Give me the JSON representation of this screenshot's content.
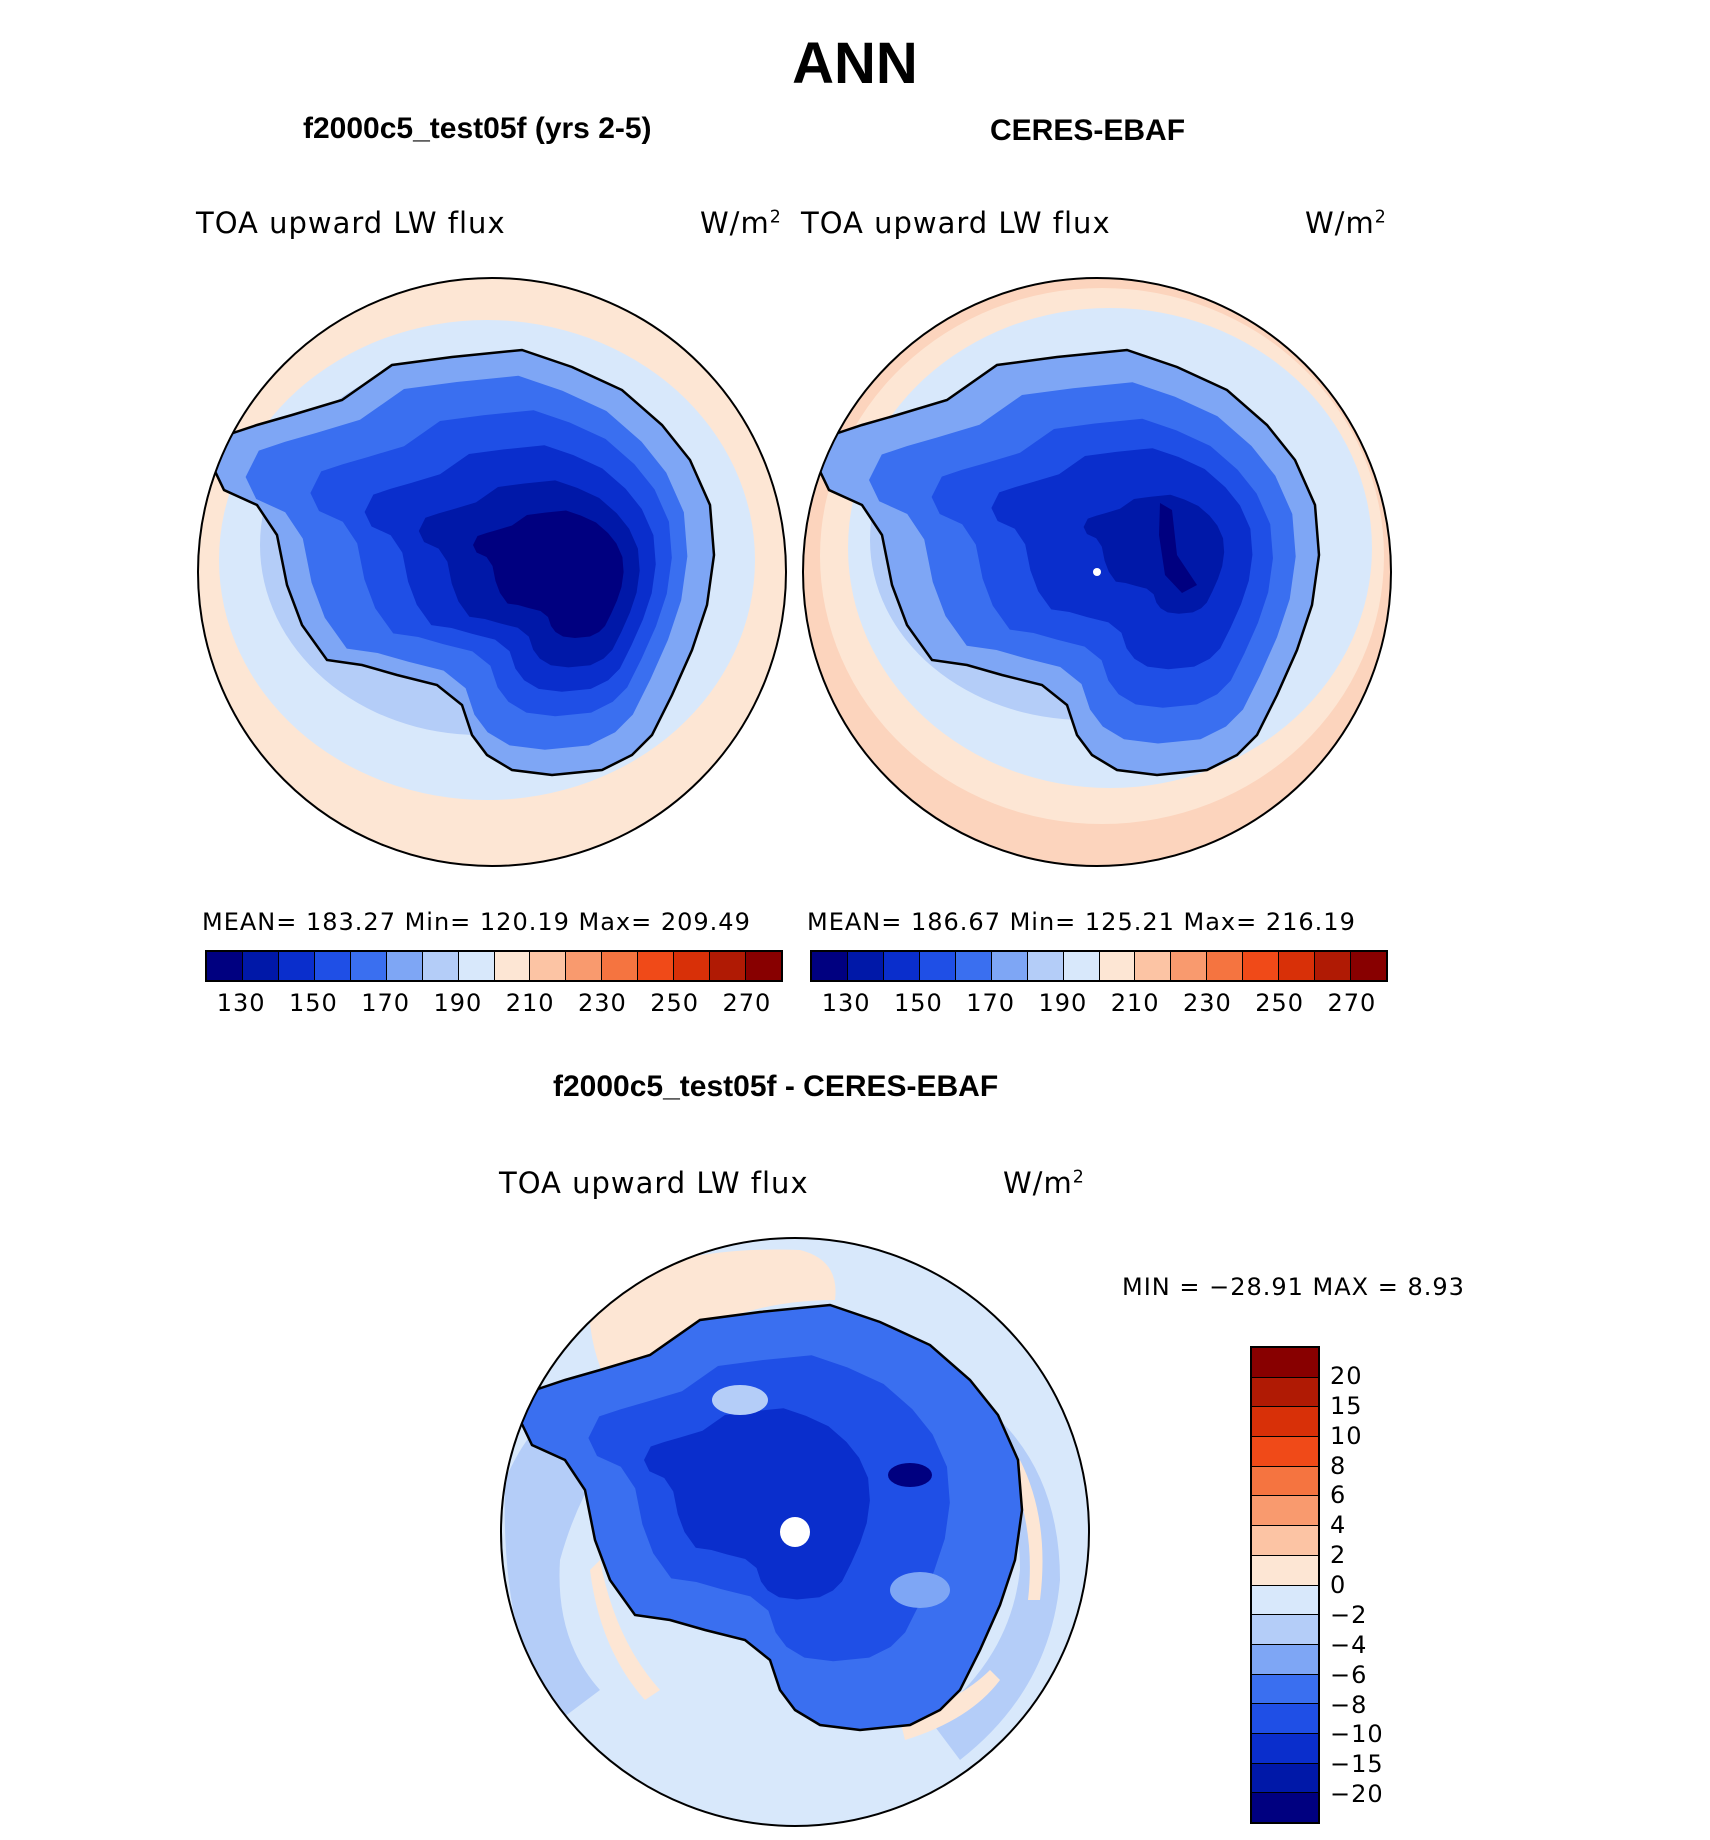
{
  "title": "ANN",
  "panels": {
    "model": {
      "title": "f2000c5_test05f (yrs 2-5)",
      "variable": "TOA upward LW flux",
      "units": "W/m",
      "units_sup": "2",
      "stats": "MEAN=  183.27   Min=  120.19   Max=  209.49"
    },
    "obs": {
      "title": "CERES-EBAF",
      "variable": "TOA upward LW flux",
      "units": "W/m",
      "units_sup": "2",
      "stats": "MEAN=  186.67   Min=  125.21   Max=  216.19"
    },
    "diff": {
      "title": "f2000c5_test05f - CERES-EBAF",
      "variable": "TOA upward LW flux",
      "units": "W/m",
      "units_sup": "2",
      "stats": "MIN  =  −28.91  MAX  =     8.93"
    }
  },
  "abs_colorbar": {
    "labels": [
      "130",
      "150",
      "170",
      "190",
      "210",
      "230",
      "250",
      "270"
    ],
    "colors": [
      "#000080",
      "#0018a8",
      "#0a2ecc",
      "#1f4fe6",
      "#3a6ff0",
      "#7ea6f5",
      "#b4cdf8",
      "#d8e8fb",
      "#fde6d4",
      "#fcc4a4",
      "#f99a6e",
      "#f57440",
      "#f04a18",
      "#d83008",
      "#b01a04",
      "#880000"
    ]
  },
  "diff_colorbar": {
    "labels": [
      "20",
      "15",
      "10",
      "8",
      "6",
      "4",
      "2",
      "0",
      "−2",
      "−4",
      "−6",
      "−8",
      "−10",
      "−15",
      "−20"
    ],
    "colors": [
      "#880000",
      "#b01a04",
      "#d83008",
      "#f04a18",
      "#f57440",
      "#f99a6e",
      "#fcc4a4",
      "#fde6d4",
      "#d8e8fb",
      "#b4cdf8",
      "#7ea6f5",
      "#3a6ff0",
      "#1f4fe6",
      "#0a2ecc",
      "#0018a8",
      "#000080"
    ]
  },
  "map_colors": {
    "ring_warm": "#fde6d4",
    "ring_warm2": "#fcd4bd",
    "ocean": "#d8e8fb",
    "l1": "#b4cdf8",
    "l2": "#7ea6f5",
    "l3": "#3a6ff0",
    "l4": "#1f4fe6",
    "l5": "#0a2ecc",
    "l6": "#0018a8",
    "l7": "#000080",
    "pos_hot": "#f04a18",
    "pos_warm": "#f99a6e"
  }
}
